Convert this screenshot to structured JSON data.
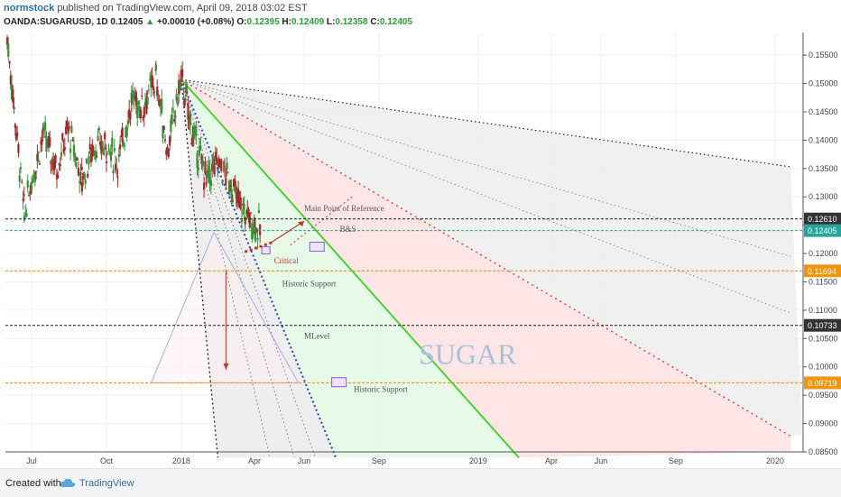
{
  "header": {
    "author": "normstock",
    "published_text": "published on TradingView.com, April 09, 2018 03:02 EST",
    "symbol": "OANDA:SUGARUSD, 1D",
    "last": "0.12405",
    "change_arrow": "▲",
    "change": "+0.00010 (+0.08%)",
    "o_label": "O:",
    "o_value": "0.12395",
    "h_label": "H:",
    "h_value": "0.12409",
    "l_label": "L:",
    "l_value": "0.12358",
    "c_label": "C:",
    "c_value": "0.12405"
  },
  "footer": {
    "created_with": "Created with",
    "brand": "TradingView",
    "logo_icon": "tradingview-cloud-icon"
  },
  "chart_data": {
    "type": "candlestick",
    "title": "",
    "x_tick_labels": [
      "Jul",
      "Oct",
      "2018",
      "Apr",
      "Jun",
      "Sep",
      "2019",
      "Apr",
      "Jun",
      "Sep",
      "2020"
    ],
    "x_tick_dates": [
      "2017-07-01",
      "2017-10-01",
      "2018-01-01",
      "2018-04-01",
      "2018-06-01",
      "2018-09-01",
      "2019-01-01",
      "2019-04-01",
      "2019-06-01",
      "2019-09-01",
      "2020-01-01"
    ],
    "ylim": [
      0.085,
      0.159
    ],
    "y_tick_labels": [
      "0.15500",
      "0.15000",
      "0.14500",
      "0.14000",
      "0.13500",
      "0.13000",
      "0.12500",
      "0.12000",
      "0.11500",
      "0.11000",
      "0.10500",
      "0.10000",
      "0.09500",
      "0.09000",
      "0.08500"
    ],
    "y_ticks": [
      0.155,
      0.15,
      0.145,
      0.14,
      0.135,
      0.13,
      0.125,
      0.12,
      0.115,
      0.11,
      0.105,
      0.1,
      0.095,
      0.09,
      0.085
    ],
    "price_levels": [
      {
        "value": 0.1261,
        "label": "0.12610",
        "color": "#333333",
        "style": "dashed"
      },
      {
        "value": 0.12405,
        "label": "0.12405",
        "color": "#26a69a",
        "style": "dashed"
      },
      {
        "value": 0.11694,
        "label": "0.11694",
        "color": "#f0960e",
        "style": "dashed"
      },
      {
        "value": 0.10733,
        "label": "0.10733",
        "color": "#333333",
        "style": "dashed"
      },
      {
        "value": 0.09719,
        "label": "0.09719",
        "color": "#f0960e",
        "style": "dashed"
      }
    ],
    "candles_approx": [
      {
        "date": "2017-06-01",
        "close": 0.158
      },
      {
        "date": "2017-06-12",
        "close": 0.142
      },
      {
        "date": "2017-06-22",
        "close": 0.127
      },
      {
        "date": "2017-07-01",
        "close": 0.133
      },
      {
        "date": "2017-07-15",
        "close": 0.141
      },
      {
        "date": "2017-08-01",
        "close": 0.135
      },
      {
        "date": "2017-08-15",
        "close": 0.142
      },
      {
        "date": "2017-09-01",
        "close": 0.133
      },
      {
        "date": "2017-09-15",
        "close": 0.139
      },
      {
        "date": "2017-10-01",
        "close": 0.139
      },
      {
        "date": "2017-10-15",
        "close": 0.136
      },
      {
        "date": "2017-11-01",
        "close": 0.147
      },
      {
        "date": "2017-11-15",
        "close": 0.146
      },
      {
        "date": "2017-12-01",
        "close": 0.151
      },
      {
        "date": "2017-12-15",
        "close": 0.138
      },
      {
        "date": "2018-01-01",
        "close": 0.151
      },
      {
        "date": "2018-01-15",
        "close": 0.141
      },
      {
        "date": "2018-02-01",
        "close": 0.133
      },
      {
        "date": "2018-02-15",
        "close": 0.136
      },
      {
        "date": "2018-03-01",
        "close": 0.133
      },
      {
        "date": "2018-03-15",
        "close": 0.128
      },
      {
        "date": "2018-04-09",
        "close": 0.12405
      }
    ],
    "annotations": {
      "main_reference": "Main Point of Reference",
      "bs": "B&S",
      "critical": "Critical",
      "historic_support_1": "Historic Support",
      "mlevel": "MLevel",
      "historic_support_2": "Historic Support",
      "watermark": "SUGAR"
    },
    "colors": {
      "green_line": "#4cd137",
      "red_dotted": "#d94848",
      "blue_dotted": "#2b3fc9",
      "black_dotted": "#222222",
      "red_fill": "#ffe3e3",
      "green_fill": "#e4f8e4",
      "gray_fill": "#ececec",
      "candle_up": "#3b8f3b",
      "candle_down": "#a12b2b"
    }
  }
}
